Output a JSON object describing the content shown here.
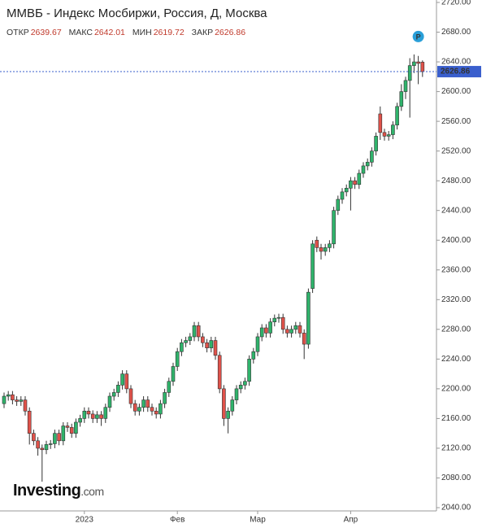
{
  "chart_data": {
    "type": "candlestick",
    "title": "ММВБ - Индекс Мосбиржи, Россия, Д, Москва",
    "ohlc_labels": {
      "open": "ОТКР",
      "high": "МАКС",
      "low": "МИН",
      "close": "ЗАКР"
    },
    "marker_label": "P",
    "brand": "Investing",
    "brand_suffix": ".com",
    "up_color": "#2fb36b",
    "down_color": "#e0524a",
    "price_line_color": "#3a5fcd",
    "categories": [
      null,
      null,
      null,
      null,
      null,
      null,
      null,
      null,
      null,
      null,
      null,
      null,
      null,
      null,
      null,
      null,
      null,
      null,
      null,
      "2023",
      null,
      null,
      null,
      null,
      null,
      null,
      null,
      null,
      null,
      null,
      null,
      null,
      null,
      null,
      null,
      null,
      null,
      null,
      null,
      null,
      null,
      "Фев",
      null,
      null,
      null,
      null,
      null,
      null,
      null,
      null,
      null,
      null,
      null,
      null,
      null,
      null,
      null,
      null,
      null,
      null,
      "Мар",
      null,
      null,
      null,
      null,
      null,
      null,
      null,
      null,
      null,
      null,
      null,
      null,
      null,
      null,
      null,
      null,
      null,
      null,
      null,
      null,
      null,
      "Апр",
      null,
      null,
      null,
      null,
      null,
      null,
      null,
      null,
      null,
      null,
      null,
      null,
      null,
      null,
      null,
      null,
      null
    ],
    "open": [
      2180,
      2190,
      2192,
      2185,
      2183,
      2185,
      2170,
      2140,
      2130,
      2120,
      2118,
      2125,
      2126,
      2140,
      2130,
      2150,
      2148,
      2140,
      2155,
      2160,
      2170,
      2166,
      2160,
      2165,
      2160,
      2175,
      2190,
      2195,
      2205,
      2220,
      2200,
      2180,
      2170,
      2175,
      2185,
      2175,
      2170,
      2166,
      2180,
      2195,
      2210,
      2230,
      2250,
      2262,
      2265,
      2270,
      2285,
      2270,
      2262,
      2255,
      2265,
      2245,
      2200,
      2160,
      2170,
      2185,
      2200,
      2205,
      2210,
      2240,
      2250,
      2270,
      2282,
      2275,
      2290,
      2295,
      2296,
      2280,
      2275,
      2280,
      2285,
      2275,
      2260,
      2335,
      2400,
      2390,
      2385,
      2390,
      2395,
      2440,
      2455,
      2465,
      2470,
      2480,
      2475,
      2490,
      2500,
      2505,
      2520,
      2570,
      2545,
      2540,
      2542,
      2555,
      2580,
      2600,
      2615,
      2635,
      2640,
      2639.67
    ],
    "high": [
      2195,
      2197,
      2197,
      2190,
      2190,
      2190,
      2175,
      2145,
      2135,
      2125,
      2130,
      2131,
      2145,
      2145,
      2155,
      2155,
      2153,
      2160,
      2165,
      2175,
      2175,
      2171,
      2170,
      2170,
      2180,
      2195,
      2200,
      2210,
      2225,
      2225,
      2205,
      2185,
      2180,
      2190,
      2190,
      2180,
      2175,
      2185,
      2200,
      2215,
      2235,
      2255,
      2267,
      2270,
      2275,
      2290,
      2290,
      2275,
      2267,
      2270,
      2270,
      2250,
      2205,
      2175,
      2190,
      2205,
      2210,
      2215,
      2245,
      2255,
      2275,
      2287,
      2287,
      2295,
      2300,
      2301,
      2301,
      2285,
      2285,
      2290,
      2290,
      2280,
      2335,
      2400,
      2405,
      2395,
      2395,
      2400,
      2445,
      2460,
      2470,
      2475,
      2485,
      2485,
      2495,
      2505,
      2510,
      2525,
      2545,
      2580,
      2550,
      2547,
      2560,
      2585,
      2610,
      2620,
      2645,
      2650,
      2648,
      2642.01
    ],
    "low": [
      2174,
      2184,
      2179,
      2177,
      2177,
      2164,
      2125,
      2124,
      2110,
      2075,
      2112,
      2119,
      2120,
      2124,
      2124,
      2142,
      2134,
      2134,
      2149,
      2154,
      2160,
      2154,
      2154,
      2150,
      2154,
      2169,
      2184,
      2189,
      2199,
      2194,
      2174,
      2164,
      2164,
      2169,
      2169,
      2164,
      2160,
      2160,
      2174,
      2189,
      2204,
      2224,
      2244,
      2256,
      2259,
      2264,
      2264,
      2256,
      2249,
      2249,
      2239,
      2194,
      2150,
      2140,
      2164,
      2179,
      2194,
      2199,
      2204,
      2234,
      2244,
      2264,
      2269,
      2269,
      2284,
      2289,
      2274,
      2269,
      2269,
      2274,
      2269,
      2240,
      2254,
      2329,
      2384,
      2374,
      2379,
      2384,
      2389,
      2434,
      2449,
      2459,
      2440,
      2469,
      2469,
      2484,
      2494,
      2499,
      2514,
      2535,
      2534,
      2534,
      2536,
      2549,
      2574,
      2590,
      2565,
      2625,
      2610,
      2619.72
    ],
    "close": [
      2190,
      2192,
      2185,
      2183,
      2185,
      2170,
      2140,
      2130,
      2120,
      2118,
      2125,
      2126,
      2140,
      2130,
      2150,
      2148,
      2140,
      2155,
      2160,
      2170,
      2166,
      2160,
      2165,
      2160,
      2175,
      2190,
      2195,
      2205,
      2220,
      2200,
      2180,
      2170,
      2175,
      2185,
      2175,
      2170,
      2166,
      2180,
      2195,
      2210,
      2230,
      2250,
      2262,
      2265,
      2270,
      2285,
      2270,
      2262,
      2255,
      2265,
      2245,
      2200,
      2160,
      2170,
      2185,
      2200,
      2205,
      2210,
      2240,
      2250,
      2270,
      2282,
      2275,
      2290,
      2295,
      2296,
      2280,
      2275,
      2280,
      2285,
      2275,
      2260,
      2330,
      2395,
      2390,
      2385,
      2390,
      2395,
      2440,
      2455,
      2465,
      2470,
      2480,
      2475,
      2490,
      2500,
      2505,
      2520,
      2540,
      2545,
      2540,
      2542,
      2555,
      2580,
      2600,
      2615,
      2635,
      2640,
      2638,
      2626.86
    ],
    "ylim": [
      2040,
      2720
    ],
    "yticks": [
      {
        "value": 2040,
        "label": "2040.00"
      },
      {
        "value": 2080,
        "label": "2080.00"
      },
      {
        "value": 2120,
        "label": "2120.00"
      },
      {
        "value": 2160,
        "label": "2160.00"
      },
      {
        "value": 2200,
        "label": "2200.00"
      },
      {
        "value": 2240,
        "label": "2240.00"
      },
      {
        "value": 2280,
        "label": "2280.00"
      },
      {
        "value": 2320,
        "label": "2320.00"
      },
      {
        "value": 2360,
        "label": "2360.00"
      },
      {
        "value": 2400,
        "label": "2400.00"
      },
      {
        "value": 2440,
        "label": "2440.00"
      },
      {
        "value": 2480,
        "label": "2480.00"
      },
      {
        "value": 2520,
        "label": "2520.00"
      },
      {
        "value": 2560,
        "label": "2560.00"
      },
      {
        "value": 2600,
        "label": "2600.00"
      },
      {
        "value": 2640,
        "label": "2640.00"
      },
      {
        "value": 2680,
        "label": "2680.00"
      },
      {
        "value": 2720,
        "label": "2720.00"
      }
    ],
    "grid": false
  }
}
